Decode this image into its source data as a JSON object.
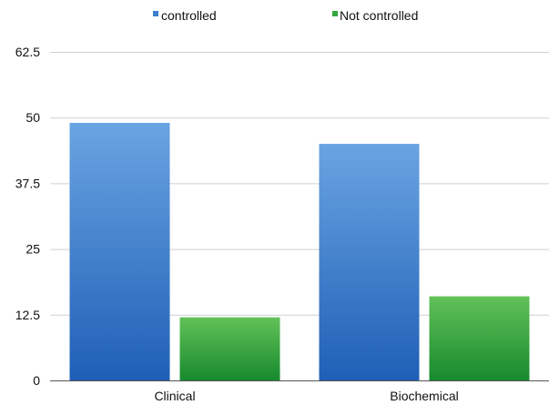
{
  "chart_data": {
    "type": "bar",
    "categories": [
      "Clinical",
      "Biochemical"
    ],
    "series": [
      {
        "name": "controlled",
        "values": [
          49,
          45
        ],
        "color": "#2f73c9"
      },
      {
        "name": "Not controlled",
        "values": [
          12,
          16
        ],
        "color": "#2fa83a"
      }
    ],
    "y_ticks": [
      "0",
      "12.5",
      "25",
      "37.5",
      "50",
      "62.5"
    ],
    "ylim": [
      0,
      62.5
    ],
    "grid": true,
    "legend_position": "top-center",
    "title": "",
    "xlabel": "",
    "ylabel": ""
  }
}
